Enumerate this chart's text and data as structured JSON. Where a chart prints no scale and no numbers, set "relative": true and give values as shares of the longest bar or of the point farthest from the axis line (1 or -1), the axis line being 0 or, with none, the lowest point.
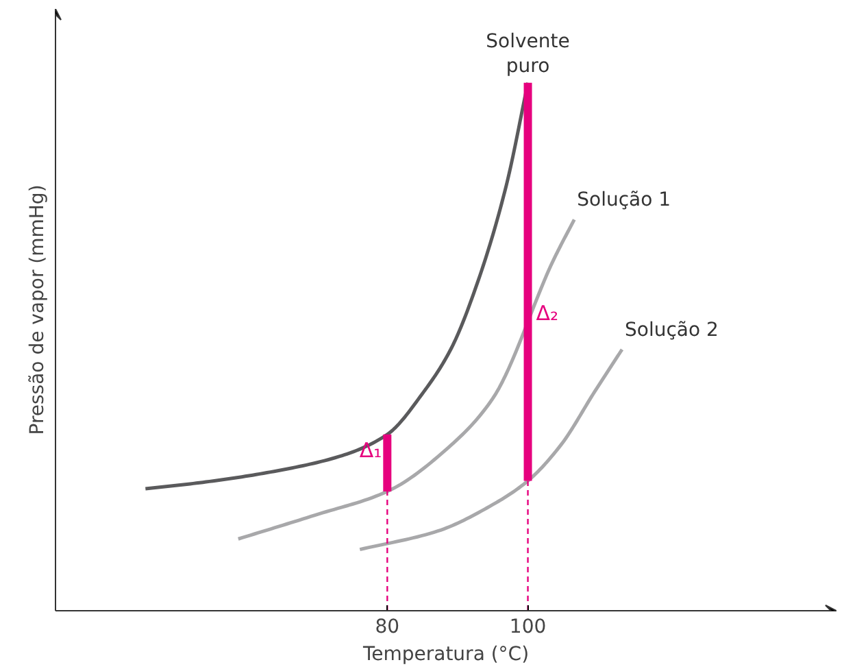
{
  "chart_data": {
    "type": "line",
    "relative": true,
    "xlabel": "Temperatura (°C)",
    "ylabel": "Pressão de vapor (mmHg)",
    "xlim": [
      32.8,
      143.9
    ],
    "xticks": [
      80,
      100
    ],
    "grid": false,
    "series": [
      {
        "name": "Solvente puro",
        "color": "#5a5a5c",
        "x": [
          45.6,
          54.2,
          63.9,
          73.6,
          80,
          85.2,
          89.1,
          93.0,
          96.9,
          100
        ],
        "values": [
          0.231,
          0.244,
          0.264,
          0.294,
          0.334,
          0.415,
          0.497,
          0.628,
          0.804,
          1.0
        ]
      },
      {
        "name": "Solução 1",
        "color": "#a8a8aa",
        "x": [
          58.8,
          69.7,
          80,
          89.1,
          95.0,
          103.7,
          106.6
        ],
        "values": [
          0.136,
          0.181,
          0.226,
          0.314,
          0.402,
          0.666,
          0.741
        ]
      },
      {
        "name": "Solução 2",
        "color": "#a8a8aa",
        "x": [
          76.1,
          87.2,
          95.0,
          100,
          104.7,
          109.5,
          113.4
        ],
        "values": [
          0.116,
          0.151,
          0.201,
          0.246,
          0.314,
          0.415,
          0.495
        ]
      },
      {
        "color": "#e6007e",
        "x": [
          80,
          80
        ],
        "values": [
          0.226,
          0.334
        ]
      },
      {
        "color": "#e6007e",
        "x": [
          100,
          100
        ],
        "values": [
          0.246,
          1.0
        ]
      },
      {
        "line_style": "dashed",
        "color": "#e6007e",
        "x": [
          80,
          80
        ],
        "values": [
          0,
          0.226
        ]
      },
      {
        "line_style": "dashed",
        "color": "#e6007e",
        "x": [
          100,
          100
        ],
        "values": [
          0,
          0.246
        ]
      }
    ],
    "annotations": [
      {
        "text": "Δ₁",
        "x": 80,
        "y": 0.28
      },
      {
        "text": "Δ₂",
        "x": 100,
        "y": 0.54
      }
    ]
  }
}
